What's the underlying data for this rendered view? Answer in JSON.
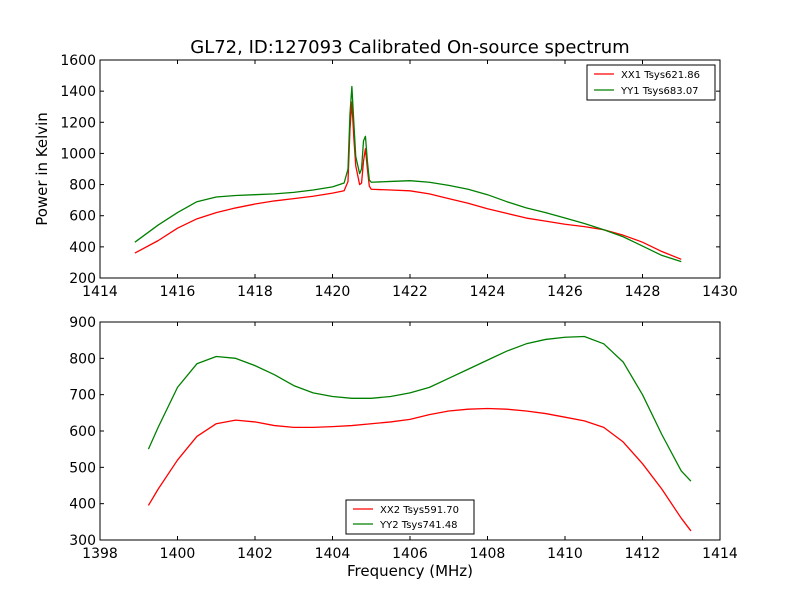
{
  "title": "GL72, ID:127093 Calibrated On-source spectrum",
  "chart_data": [
    {
      "type": "line",
      "title": "GL72, ID:127093 Calibrated On-source spectrum",
      "xlabel": "",
      "ylabel": "Power in Kelvin",
      "xlim": [
        1414,
        1430
      ],
      "ylim": [
        200,
        1600
      ],
      "xticks": [
        "1414",
        "1416",
        "1418",
        "1420",
        "1422",
        "1424",
        "1426",
        "1428",
        "1430"
      ],
      "yticks": [
        "200",
        "400",
        "600",
        "800",
        "1000",
        "1200",
        "1400",
        "1600"
      ],
      "grid": false,
      "legend_position": "top-right",
      "series": [
        {
          "name": "XX1 Tsys621.86",
          "color": "#ff0000",
          "x": [
            1414.9,
            1415.5,
            1416.0,
            1416.5,
            1417.0,
            1417.5,
            1418.0,
            1418.5,
            1419.0,
            1419.5,
            1420.0,
            1420.3,
            1420.4,
            1420.45,
            1420.5,
            1420.55,
            1420.6,
            1420.7,
            1420.75,
            1420.8,
            1420.85,
            1420.9,
            1420.95,
            1421.0,
            1421.5,
            1422.0,
            1422.5,
            1423.0,
            1423.5,
            1424.0,
            1424.5,
            1425.0,
            1425.5,
            1426.0,
            1426.5,
            1427.0,
            1427.5,
            1428.0,
            1428.5,
            1429.0
          ],
          "values": [
            360,
            440,
            520,
            580,
            620,
            650,
            675,
            695,
            710,
            725,
            745,
            760,
            820,
            1150,
            1330,
            1100,
            920,
            800,
            810,
            950,
            1030,
            900,
            790,
            770,
            765,
            760,
            740,
            710,
            680,
            645,
            615,
            585,
            565,
            545,
            530,
            510,
            475,
            430,
            370,
            320
          ]
        },
        {
          "name": "YY1 Tsys683.07",
          "color": "#008000",
          "x": [
            1414.9,
            1415.5,
            1416.0,
            1416.5,
            1417.0,
            1417.5,
            1418.0,
            1418.5,
            1419.0,
            1419.5,
            1420.0,
            1420.3,
            1420.4,
            1420.45,
            1420.5,
            1420.55,
            1420.6,
            1420.7,
            1420.75,
            1420.8,
            1420.85,
            1420.9,
            1420.95,
            1421.0,
            1421.5,
            1422.0,
            1422.5,
            1423.0,
            1423.5,
            1424.0,
            1424.5,
            1425.0,
            1425.5,
            1426.0,
            1426.5,
            1427.0,
            1427.5,
            1428.0,
            1428.5,
            1429.0
          ],
          "values": [
            430,
            540,
            620,
            690,
            720,
            730,
            735,
            740,
            750,
            765,
            785,
            810,
            900,
            1250,
            1430,
            1200,
            980,
            870,
            900,
            1080,
            1110,
            950,
            830,
            815,
            820,
            825,
            815,
            795,
            770,
            735,
            690,
            650,
            620,
            585,
            550,
            510,
            465,
            405,
            345,
            305
          ]
        }
      ]
    },
    {
      "type": "line",
      "title": "",
      "xlabel": "Frequency (MHz)",
      "ylabel": "",
      "xlim": [
        1398,
        1414
      ],
      "ylim": [
        300,
        900
      ],
      "xticks": [
        "1398",
        "1400",
        "1402",
        "1404",
        "1406",
        "1408",
        "1410",
        "1412",
        "1414"
      ],
      "yticks": [
        "300",
        "400",
        "500",
        "600",
        "700",
        "800",
        "900"
      ],
      "grid": false,
      "legend_position": "bottom-center",
      "series": [
        {
          "name": "XX2 Tsys591.70",
          "color": "#ff0000",
          "x": [
            1399.25,
            1399.5,
            1400.0,
            1400.5,
            1401.0,
            1401.5,
            1402.0,
            1402.5,
            1403.0,
            1403.5,
            1404.0,
            1404.5,
            1405.0,
            1405.5,
            1406.0,
            1406.5,
            1407.0,
            1407.5,
            1408.0,
            1408.5,
            1409.0,
            1409.5,
            1410.0,
            1410.5,
            1411.0,
            1411.5,
            1412.0,
            1412.5,
            1413.0,
            1413.25
          ],
          "values": [
            395,
            440,
            520,
            585,
            620,
            630,
            625,
            615,
            610,
            610,
            612,
            615,
            620,
            625,
            632,
            645,
            655,
            660,
            662,
            660,
            655,
            648,
            638,
            628,
            610,
            570,
            510,
            440,
            360,
            325
          ]
        },
        {
          "name": "YY2 Tsys741.48",
          "color": "#008000",
          "x": [
            1399.25,
            1399.5,
            1400.0,
            1400.5,
            1401.0,
            1401.5,
            1402.0,
            1402.5,
            1403.0,
            1403.5,
            1404.0,
            1404.5,
            1405.0,
            1405.5,
            1406.0,
            1406.5,
            1407.0,
            1407.5,
            1408.0,
            1408.5,
            1409.0,
            1409.5,
            1410.0,
            1410.5,
            1411.0,
            1411.5,
            1412.0,
            1412.5,
            1413.0,
            1413.25
          ],
          "values": [
            550,
            610,
            720,
            785,
            805,
            800,
            780,
            755,
            725,
            705,
            695,
            690,
            690,
            695,
            705,
            720,
            745,
            770,
            795,
            820,
            840,
            852,
            858,
            860,
            840,
            790,
            700,
            590,
            490,
            462
          ]
        }
      ]
    }
  ]
}
